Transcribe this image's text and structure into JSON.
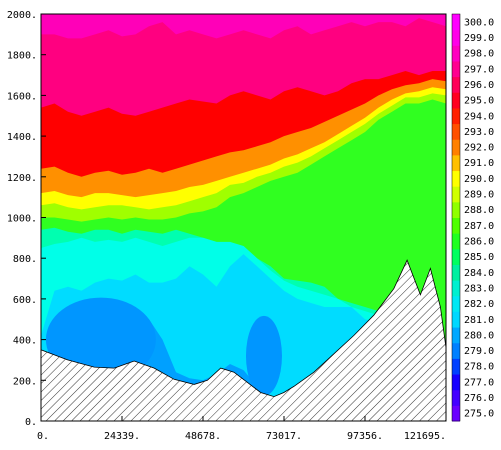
{
  "chart_data": {
    "type": "heatmap",
    "title": "",
    "xlabel": "",
    "ylabel": "",
    "xlim": [
      0,
      121695
    ],
    "ylim": [
      0,
      2000
    ],
    "x_ticks": [
      "0.",
      "24339.",
      "48678.",
      "73017.",
      "97356.",
      "121695."
    ],
    "y_ticks": [
      "0.",
      "200.",
      "400.",
      "600.",
      "800.",
      "1000.",
      "1200.",
      "1400.",
      "1600.",
      "1800.",
      "2000."
    ],
    "colorbar": {
      "levels": [
        "275.0",
        "276.0",
        "277.0",
        "278.0",
        "279.0",
        "280.0",
        "281.0",
        "282.0",
        "283.0",
        "284.0",
        "285.0",
        "286.0",
        "287.0",
        "288.0",
        "289.0",
        "290.0",
        "291.0",
        "292.0",
        "293.0",
        "294.0",
        "295.0",
        "296.0",
        "297.0",
        "298.0",
        "299.0",
        "300.0"
      ],
      "colors": [
        "#6a00ff",
        "#4400ff",
        "#1500ff",
        "#0040ff",
        "#0080ff",
        "#00a8ff",
        "#00d8ff",
        "#00e8f4",
        "#00f0d0",
        "#00f0a0",
        "#00ff60",
        "#20ff20",
        "#50ff00",
        "#90ff00",
        "#d0ff00",
        "#ffff00",
        "#ffc000",
        "#ff8000",
        "#ff5000",
        "#ff2000",
        "#ff0020",
        "#ff0058",
        "#ff0090",
        "#ff00c0",
        "#ff00e8",
        "#ff00ff"
      ]
    },
    "bands_upper_boundary": [
      {
        "label": "279.0",
        "color": "#00a0ff",
        "y": [
          0,
          0,
          0,
          0,
          170,
          460,
          530,
          560,
          500,
          400,
          240,
          210,
          200,
          230,
          280,
          250,
          170,
          0,
          0,
          0,
          0,
          0,
          0,
          0,
          0,
          0,
          0,
          0,
          0,
          0,
          0
        ]
      },
      {
        "label": "280.0",
        "color": "#00dcff",
        "y": [
          420,
          640,
          660,
          640,
          680,
          700,
          690,
          720,
          680,
          680,
          700,
          760,
          720,
          660,
          760,
          820,
          760,
          700,
          640,
          600,
          580,
          560,
          560,
          560,
          500,
          480,
          460,
          440,
          420,
          380,
          340
        ]
      },
      {
        "label": "282.0",
        "color": "#00ffe8",
        "y": [
          850,
          870,
          880,
          900,
          880,
          890,
          880,
          900,
          880,
          860,
          880,
          900,
          900,
          880,
          880,
          860,
          800,
          740,
          690,
          660,
          640,
          620,
          600,
          560,
          540,
          520,
          480,
          470,
          460,
          430,
          380
        ]
      },
      {
        "label": "284.0",
        "color": "#00ffb0",
        "y": [
          940,
          950,
          930,
          920,
          940,
          940,
          920,
          940,
          930,
          920,
          940,
          920,
          900,
          880,
          860,
          860,
          800,
          760,
          700,
          690,
          680,
          660,
          600,
          580,
          560,
          540,
          500,
          480,
          460,
          440,
          400
        ]
      },
      {
        "label": "286.0",
        "color": "#30ff20",
        "y": [
          1000,
          1000,
          990,
          980,
          990,
          1000,
          990,
          1000,
          990,
          990,
          1000,
          1020,
          1030,
          1050,
          1100,
          1120,
          1150,
          1180,
          1200,
          1220,
          1260,
          1300,
          1340,
          1380,
          1420,
          1480,
          1520,
          1560,
          1560,
          1580,
          1560
        ]
      },
      {
        "label": "288.0",
        "color": "#a0ff00",
        "y": [
          1060,
          1070,
          1050,
          1040,
          1050,
          1060,
          1060,
          1050,
          1040,
          1050,
          1060,
          1080,
          1100,
          1120,
          1160,
          1170,
          1200,
          1220,
          1250,
          1270,
          1300,
          1340,
          1380,
          1420,
          1460,
          1510,
          1550,
          1590,
          1590,
          1610,
          1600
        ]
      },
      {
        "label": "290.0",
        "color": "#ffff00",
        "y": [
          1120,
          1130,
          1110,
          1100,
          1120,
          1120,
          1110,
          1100,
          1110,
          1120,
          1130,
          1150,
          1160,
          1180,
          1200,
          1220,
          1240,
          1260,
          1290,
          1310,
          1340,
          1370,
          1410,
          1450,
          1490,
          1540,
          1580,
          1610,
          1620,
          1640,
          1630
        ]
      },
      {
        "label": "292.0",
        "color": "#ff9000",
        "y": [
          1240,
          1250,
          1220,
          1200,
          1220,
          1230,
          1210,
          1220,
          1240,
          1220,
          1240,
          1260,
          1280,
          1300,
          1320,
          1330,
          1350,
          1370,
          1400,
          1420,
          1440,
          1470,
          1500,
          1530,
          1560,
          1600,
          1630,
          1650,
          1660,
          1680,
          1670
        ]
      },
      {
        "label": "294.0",
        "color": "#ff0000",
        "y": [
          1540,
          1560,
          1520,
          1500,
          1520,
          1540,
          1510,
          1500,
          1520,
          1540,
          1560,
          1580,
          1570,
          1560,
          1600,
          1620,
          1600,
          1580,
          1620,
          1640,
          1620,
          1600,
          1620,
          1660,
          1680,
          1680,
          1700,
          1720,
          1700,
          1720,
          1720
        ]
      },
      {
        "label": "297.0",
        "color": "#ff0080",
        "y": [
          1900,
          1900,
          1880,
          1880,
          1900,
          1920,
          1890,
          1900,
          1940,
          1960,
          1900,
          1920,
          1900,
          1880,
          1900,
          1920,
          1900,
          1880,
          1920,
          1940,
          1900,
          1920,
          1940,
          1960,
          1940,
          1960,
          1960,
          1940,
          1980,
          1960,
          1940
        ]
      },
      {
        "label": "298.0",
        "color": "#ff00b8",
        "y": [
          2000,
          2000,
          2000,
          2000,
          2000,
          2000,
          2000,
          2000,
          2000,
          2000,
          2000,
          2000,
          2000,
          2000,
          2000,
          2000,
          2000,
          2000,
          2000,
          2000,
          2000,
          2000,
          2000,
          2000,
          2000,
          2000,
          2000,
          2000,
          2000,
          2000,
          2000
        ]
      }
    ],
    "terrain": {
      "x": [
        0,
        8000,
        16000,
        22000,
        28000,
        34000,
        40000,
        46000,
        50000,
        54000,
        58000,
        62000,
        66000,
        70000,
        73000,
        76000,
        82000,
        88000,
        94000,
        100000,
        106000,
        110000,
        114000,
        117000,
        120000,
        121695
      ],
      "y": [
        350,
        300,
        265,
        260,
        295,
        260,
        205,
        180,
        200,
        260,
        240,
        190,
        140,
        120,
        140,
        170,
        240,
        330,
        420,
        520,
        650,
        790,
        620,
        750,
        560,
        360
      ]
    },
    "minima": [
      {
        "x": 18000,
        "y": 400,
        "color": "#0096ff"
      },
      {
        "x": 67000,
        "y": 320,
        "color": "#0096ff"
      }
    ]
  }
}
